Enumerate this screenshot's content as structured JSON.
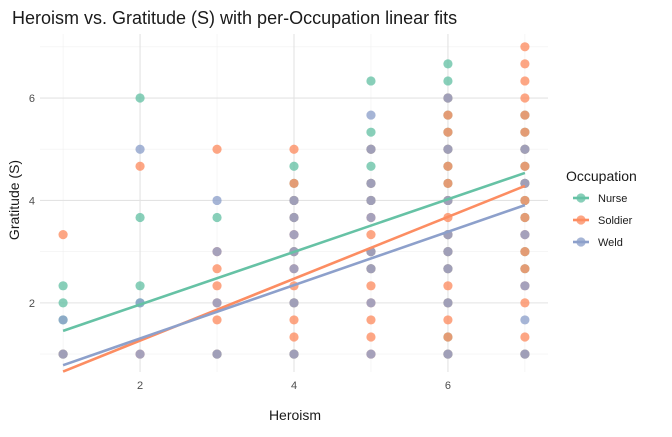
{
  "chart_data": {
    "type": "scatter",
    "title": "Heroism vs. Gratitude (S) with per-Occupation linear fits",
    "xlabel": "Heroism",
    "ylabel": "Gratitude (S)",
    "xlim": [
      0.7,
      7.3
    ],
    "ylim": [
      0.65,
      7.25
    ],
    "x_ticks": [
      2,
      4,
      6
    ],
    "y_ticks": [
      2,
      4,
      6
    ],
    "grid": true,
    "legend": {
      "title": "Occupation",
      "position": "right"
    },
    "series": [
      {
        "name": "Nurse",
        "color": "#66c2a5",
        "fit": {
          "intercept": 0.939,
          "slope": 0.514
        },
        "points": [
          [
            1,
            1
          ],
          [
            1,
            1.667
          ],
          [
            1,
            2
          ],
          [
            1,
            2.333
          ],
          [
            2,
            2
          ],
          [
            2,
            2.333
          ],
          [
            2,
            3.667
          ],
          [
            2,
            6
          ],
          [
            3,
            1
          ],
          [
            3,
            3.667
          ],
          [
            4,
            1
          ],
          [
            4,
            2
          ],
          [
            4,
            3
          ],
          [
            4,
            3.667
          ],
          [
            4,
            4
          ],
          [
            4,
            4.333
          ],
          [
            4,
            4.667
          ],
          [
            5,
            2.667
          ],
          [
            5,
            3
          ],
          [
            5,
            4
          ],
          [
            5,
            4.333
          ],
          [
            5,
            4.667
          ],
          [
            5,
            5
          ],
          [
            5,
            5.333
          ],
          [
            5,
            6.333
          ],
          [
            6,
            1
          ],
          [
            6,
            1.333
          ],
          [
            6,
            2
          ],
          [
            6,
            2.667
          ],
          [
            6,
            3
          ],
          [
            6,
            3.333
          ],
          [
            6,
            4
          ],
          [
            6,
            4.333
          ],
          [
            6,
            4.667
          ],
          [
            6,
            5
          ],
          [
            6,
            5.333
          ],
          [
            6,
            5.667
          ],
          [
            6,
            6
          ],
          [
            6,
            6.333
          ],
          [
            6,
            6.667
          ],
          [
            7,
            1
          ],
          [
            7,
            2.667
          ],
          [
            7,
            3
          ],
          [
            7,
            3.667
          ],
          [
            7,
            4
          ],
          [
            7,
            4.333
          ],
          [
            7,
            4.667
          ],
          [
            7,
            5
          ],
          [
            7,
            5.333
          ],
          [
            7,
            5.667
          ]
        ]
      },
      {
        "name": "Soldier",
        "color": "#fc8d62",
        "fit": {
          "intercept": 0.055,
          "slope": 0.604
        },
        "points": [
          [
            1,
            1
          ],
          [
            1,
            3.333
          ],
          [
            2,
            1
          ],
          [
            2,
            4.667
          ],
          [
            3,
            1
          ],
          [
            3,
            1.667
          ],
          [
            3,
            2
          ],
          [
            3,
            2.333
          ],
          [
            3,
            2.667
          ],
          [
            3,
            3
          ],
          [
            3,
            5
          ],
          [
            4,
            1
          ],
          [
            4,
            1.333
          ],
          [
            4,
            1.667
          ],
          [
            4,
            2
          ],
          [
            4,
            2.333
          ],
          [
            4,
            2.667
          ],
          [
            4,
            3
          ],
          [
            4,
            3.333
          ],
          [
            4,
            3.667
          ],
          [
            4,
            4
          ],
          [
            4,
            4.333
          ],
          [
            4,
            5
          ],
          [
            5,
            1
          ],
          [
            5,
            1.333
          ],
          [
            5,
            1.667
          ],
          [
            5,
            2
          ],
          [
            5,
            2.333
          ],
          [
            5,
            2.667
          ],
          [
            5,
            3
          ],
          [
            5,
            3.333
          ],
          [
            5,
            3.667
          ],
          [
            5,
            4
          ],
          [
            5,
            4.333
          ],
          [
            5,
            5
          ],
          [
            6,
            1
          ],
          [
            6,
            1.333
          ],
          [
            6,
            1.667
          ],
          [
            6,
            2
          ],
          [
            6,
            2.333
          ],
          [
            6,
            2.667
          ],
          [
            6,
            3
          ],
          [
            6,
            3.333
          ],
          [
            6,
            3.667
          ],
          [
            6,
            4
          ],
          [
            6,
            4.333
          ],
          [
            6,
            4.667
          ],
          [
            6,
            5
          ],
          [
            6,
            5.333
          ],
          [
            6,
            5.667
          ],
          [
            6,
            6
          ],
          [
            7,
            1
          ],
          [
            7,
            1.333
          ],
          [
            7,
            2
          ],
          [
            7,
            2.333
          ],
          [
            7,
            2.667
          ],
          [
            7,
            3
          ],
          [
            7,
            3.333
          ],
          [
            7,
            3.667
          ],
          [
            7,
            4
          ],
          [
            7,
            4.333
          ],
          [
            7,
            4.667
          ],
          [
            7,
            5
          ],
          [
            7,
            5.333
          ],
          [
            7,
            5.667
          ],
          [
            7,
            6
          ],
          [
            7,
            6.333
          ],
          [
            7,
            6.667
          ],
          [
            7,
            7
          ]
        ]
      },
      {
        "name": "Weld",
        "color": "#8da0cb",
        "fit": {
          "intercept": 0.262,
          "slope": 0.521
        },
        "points": [
          [
            1,
            1
          ],
          [
            1,
            1.667
          ],
          [
            2,
            1
          ],
          [
            2,
            2
          ],
          [
            2,
            5
          ],
          [
            3,
            1
          ],
          [
            3,
            2
          ],
          [
            3,
            3
          ],
          [
            3,
            4
          ],
          [
            4,
            1
          ],
          [
            4,
            2
          ],
          [
            4,
            2.667
          ],
          [
            4,
            3
          ],
          [
            4,
            3.333
          ],
          [
            4,
            3.667
          ],
          [
            4,
            4
          ],
          [
            5,
            1
          ],
          [
            5,
            2
          ],
          [
            5,
            2.667
          ],
          [
            5,
            3
          ],
          [
            5,
            3.667
          ],
          [
            5,
            4
          ],
          [
            5,
            4.333
          ],
          [
            5,
            5
          ],
          [
            5,
            5.667
          ],
          [
            6,
            1
          ],
          [
            6,
            2
          ],
          [
            6,
            2.667
          ],
          [
            6,
            3
          ],
          [
            6,
            3.333
          ],
          [
            6,
            4
          ],
          [
            6,
            5
          ],
          [
            6,
            6
          ],
          [
            7,
            1
          ],
          [
            7,
            1.667
          ],
          [
            7,
            2.333
          ],
          [
            7,
            3.333
          ],
          [
            7,
            4.333
          ],
          [
            7,
            5
          ]
        ]
      }
    ]
  }
}
